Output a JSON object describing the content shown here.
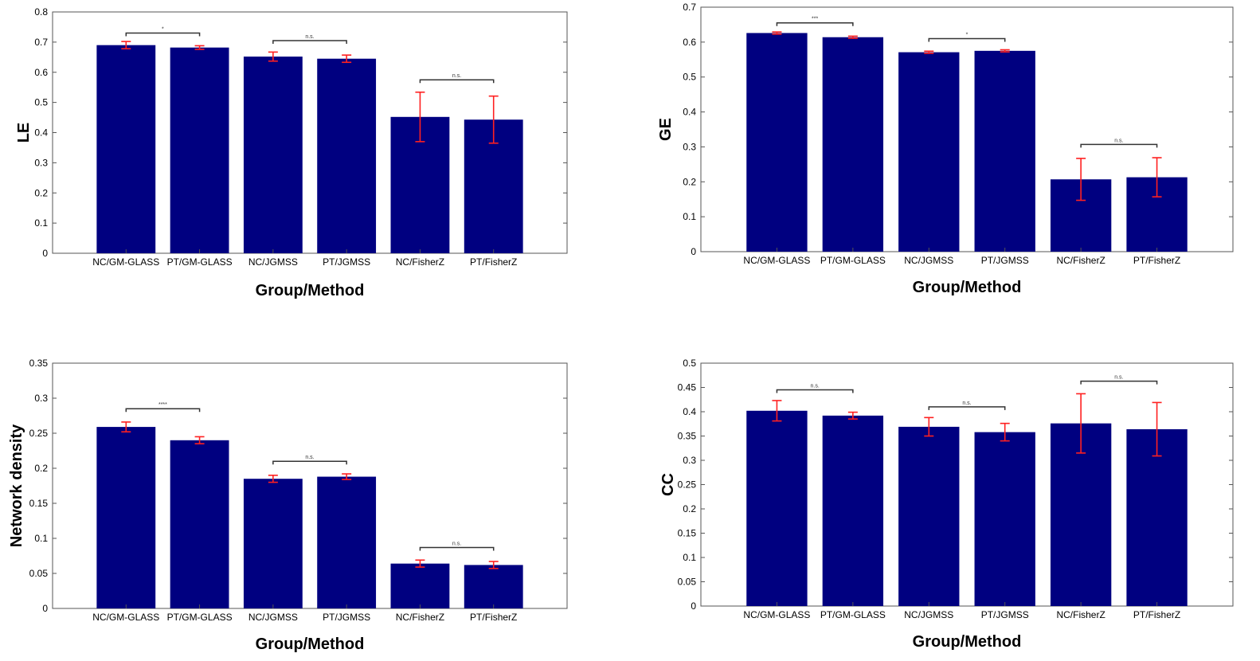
{
  "colors": {
    "bar": "#000080",
    "error": "#ff2020",
    "axis": "#000000",
    "bracket": "#333333"
  },
  "chart_data": [
    {
      "type": "bar",
      "title": "",
      "xlabel": "Group/Method",
      "ylabel": "LE",
      "categories": [
        "NC/GM-GLASS",
        "PT/GM-GLASS",
        "NC/JGMSS",
        "PT/JGMSS",
        "NC/FisherZ",
        "PT/FisherZ"
      ],
      "values": [
        0.69,
        0.682,
        0.652,
        0.645,
        0.452,
        0.443
      ],
      "error": [
        0.012,
        0.006,
        0.015,
        0.012,
        0.082,
        0.078
      ],
      "ylim": [
        0,
        0.8
      ],
      "yticks": [
        0,
        0.1,
        0.2,
        0.3,
        0.4,
        0.5,
        0.6,
        0.7,
        0.8
      ],
      "ytick_labels": [
        "0",
        "0.1",
        "0.2",
        "0.3",
        "0.4",
        "0.5",
        "0.6",
        "0.7",
        "0.8"
      ],
      "significance": [
        {
          "pair": [
            0,
            1
          ],
          "label": "*",
          "level": 0.73
        },
        {
          "pair": [
            2,
            3
          ],
          "label": "n.s.",
          "level": 0.705
        },
        {
          "pair": [
            4,
            5
          ],
          "label": "n.s.",
          "level": 0.575
        }
      ]
    },
    {
      "type": "bar",
      "title": "",
      "xlabel": "Group/Method",
      "ylabel": "GE",
      "categories": [
        "NC/GM-GLASS",
        "PT/GM-GLASS",
        "NC/JGMSS",
        "PT/JGMSS",
        "NC/FisherZ",
        "PT/FisherZ"
      ],
      "values": [
        0.626,
        0.614,
        0.571,
        0.575,
        0.207,
        0.213
      ],
      "error": [
        0.003,
        0.003,
        0.003,
        0.003,
        0.06,
        0.056
      ],
      "ylim": [
        0,
        0.7
      ],
      "yticks": [
        0,
        0.1,
        0.2,
        0.3,
        0.4,
        0.5,
        0.6,
        0.7
      ],
      "ytick_labels": [
        "0",
        "0.1",
        "0.2",
        "0.3",
        "0.4",
        "0.5",
        "0.6",
        "0.7"
      ],
      "significance": [
        {
          "pair": [
            0,
            1
          ],
          "label": "***",
          "level": 0.655
        },
        {
          "pair": [
            2,
            3
          ],
          "label": "*",
          "level": 0.61
        },
        {
          "pair": [
            4,
            5
          ],
          "label": "n.s.",
          "level": 0.307
        }
      ]
    },
    {
      "type": "bar",
      "title": "",
      "xlabel": "Group/Method",
      "ylabel": "Network density",
      "categories": [
        "NC/GM-GLASS",
        "PT/GM-GLASS",
        "NC/JGMSS",
        "PT/JGMSS",
        "NC/FisherZ",
        "PT/FisherZ"
      ],
      "values": [
        0.259,
        0.24,
        0.185,
        0.188,
        0.064,
        0.062
      ],
      "error": [
        0.007,
        0.005,
        0.005,
        0.004,
        0.005,
        0.005
      ],
      "ylim": [
        0,
        0.35
      ],
      "yticks": [
        0,
        0.05,
        0.1,
        0.15,
        0.2,
        0.25,
        0.3,
        0.35
      ],
      "ytick_labels": [
        "0",
        "0.05",
        "0.1",
        "0.15",
        "0.2",
        "0.25",
        "0.3",
        "0.35"
      ],
      "significance": [
        {
          "pair": [
            0,
            1
          ],
          "label": "****",
          "level": 0.285
        },
        {
          "pair": [
            2,
            3
          ],
          "label": "n.s.",
          "level": 0.21
        },
        {
          "pair": [
            4,
            5
          ],
          "label": "n.s.",
          "level": 0.087
        }
      ]
    },
    {
      "type": "bar",
      "title": "",
      "xlabel": "Group/Method",
      "ylabel": "CC",
      "categories": [
        "NC/GM-GLASS",
        "PT/GM-GLASS",
        "NC/JGMSS",
        "PT/JGMSS",
        "NC/FisherZ",
        "PT/FisherZ"
      ],
      "values": [
        0.402,
        0.392,
        0.369,
        0.358,
        0.376,
        0.364
      ],
      "error": [
        0.021,
        0.007,
        0.019,
        0.018,
        0.061,
        0.055
      ],
      "ylim": [
        0,
        0.5
      ],
      "yticks": [
        0,
        0.05,
        0.1,
        0.15,
        0.2,
        0.25,
        0.3,
        0.35,
        0.4,
        0.45,
        0.5
      ],
      "ytick_labels": [
        "0",
        "0.05",
        "0.1",
        "0.15",
        "0.2",
        "0.25",
        "0.3",
        "0.35",
        "0.4",
        "0.45",
        "0.5"
      ],
      "significance": [
        {
          "pair": [
            0,
            1
          ],
          "label": "n.s.",
          "level": 0.445
        },
        {
          "pair": [
            2,
            3
          ],
          "label": "n.s.",
          "level": 0.41
        },
        {
          "pair": [
            4,
            5
          ],
          "label": "n.s.",
          "level": 0.463
        }
      ]
    }
  ]
}
